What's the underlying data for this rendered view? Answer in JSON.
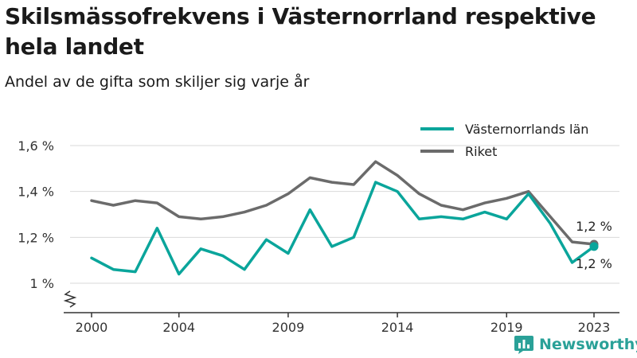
{
  "header": {
    "title": "Skilsmässofrekvens i Västernorrland respektive hela landet",
    "subtitle": "Andel av de gifta som skiljer sig varje år"
  },
  "brand": {
    "name": "Newsworthy"
  },
  "colors": {
    "lan": "#0aa59b",
    "riket": "#6b6b6b",
    "grid": "#d9d9d9",
    "brand": "#2aa198"
  },
  "chart_data": {
    "type": "line",
    "x": [
      2000,
      2001,
      2002,
      2003,
      2004,
      2005,
      2006,
      2007,
      2008,
      2009,
      2010,
      2011,
      2012,
      2013,
      2014,
      2015,
      2016,
      2017,
      2018,
      2019,
      2020,
      2021,
      2022,
      2023
    ],
    "series": [
      {
        "name": "Västernorrlands län",
        "values": [
          1.11,
          1.06,
          1.05,
          1.24,
          1.04,
          1.15,
          1.12,
          1.06,
          1.19,
          1.13,
          1.32,
          1.16,
          1.2,
          1.44,
          1.4,
          1.28,
          1.29,
          1.28,
          1.31,
          1.28,
          1.39,
          1.26,
          1.09,
          1.16
        ]
      },
      {
        "name": "Riket",
        "values": [
          1.36,
          1.34,
          1.36,
          1.35,
          1.29,
          1.28,
          1.29,
          1.31,
          1.34,
          1.39,
          1.46,
          1.44,
          1.43,
          1.53,
          1.47,
          1.39,
          1.34,
          1.32,
          1.35,
          1.37,
          1.4,
          1.29,
          1.18,
          1.17
        ]
      }
    ],
    "x_ticks": [
      2000,
      2004,
      2009,
      2014,
      2019,
      2023
    ],
    "y_ticks": [
      {
        "value": 1.0,
        "label": "1 %"
      },
      {
        "value": 1.2,
        "label": "1,2 %"
      },
      {
        "value": 1.4,
        "label": "1,4 %"
      },
      {
        "value": 1.6,
        "label": "1,6 %"
      }
    ],
    "ylim": [
      1.0,
      1.6
    ],
    "xlim": [
      2000,
      2023
    ],
    "end_labels": {
      "riket": "1,2 %",
      "lan": "1,2 %"
    },
    "legend": [
      "Västernorrlands län",
      "Riket"
    ],
    "legend_position": "top-right",
    "grid": true
  }
}
